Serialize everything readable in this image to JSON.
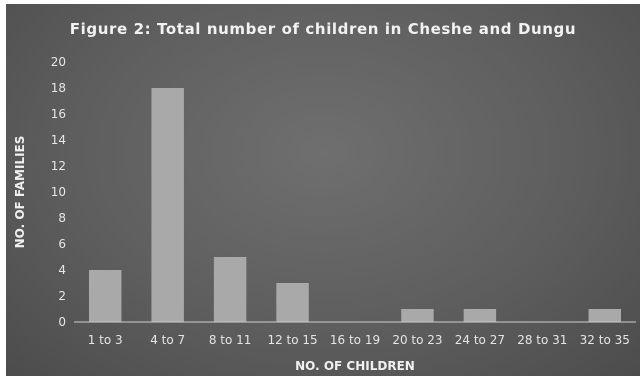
{
  "chart_data": {
    "type": "bar",
    "title": "Figure 2: Total number of children in Cheshe and Dungu",
    "xlabel": "NO. OF CHILDREN",
    "ylabel": "NO. OF FAMILIES",
    "categories": [
      "1 to 3",
      "4 to 7",
      "8 to 11",
      "12 to 15",
      "16 to 19",
      "20 to 23",
      "24 to 27",
      "28 to 31",
      "32 to 35"
    ],
    "values": [
      4,
      18,
      5,
      3,
      0,
      1,
      1,
      0,
      1
    ],
    "ylim": [
      0,
      20
    ],
    "yticks": [
      0,
      2,
      4,
      6,
      8,
      10,
      12,
      14,
      16,
      18,
      20
    ],
    "grid": false,
    "legend": "none",
    "colors": {
      "bar": "#a9a9a9",
      "background": "#5e5e5e",
      "axis": "#cfcfcf",
      "text": "#e6e6e6"
    }
  }
}
